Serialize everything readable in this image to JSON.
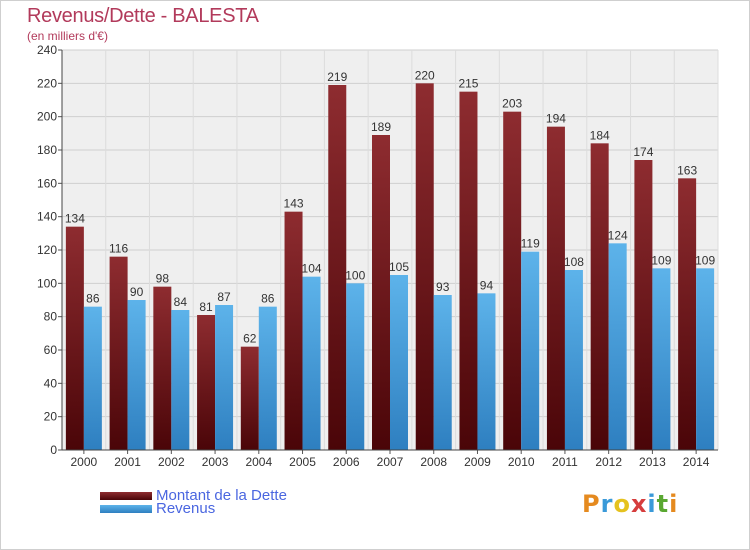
{
  "chart_data": {
    "type": "bar",
    "title": "Revenus/Dette - BALESTA",
    "subtitle": "(en milliers d'€)",
    "categories": [
      "2000",
      "2001",
      "2002",
      "2003",
      "2004",
      "2005",
      "2006",
      "2007",
      "2008",
      "2009",
      "2010",
      "2011",
      "2012",
      "2013",
      "2014"
    ],
    "series": [
      {
        "name": "Montant de la Dette",
        "color": "#7a1f22",
        "values": [
          134,
          116,
          98,
          81,
          62,
          143,
          219,
          189,
          220,
          215,
          203,
          194,
          184,
          174,
          163
        ]
      },
      {
        "name": "Revenus",
        "color": "#4aa3e0",
        "values": [
          86,
          90,
          84,
          87,
          86,
          104,
          100,
          105,
          93,
          94,
          119,
          108,
          124,
          109,
          109
        ]
      }
    ],
    "ylim": [
      0,
      240
    ],
    "yticks": [
      0,
      20,
      40,
      60,
      80,
      100,
      120,
      140,
      160,
      180,
      200,
      220,
      240
    ],
    "grid": true,
    "legend_position": "bottom-left"
  },
  "logo_text": "Proxiti"
}
